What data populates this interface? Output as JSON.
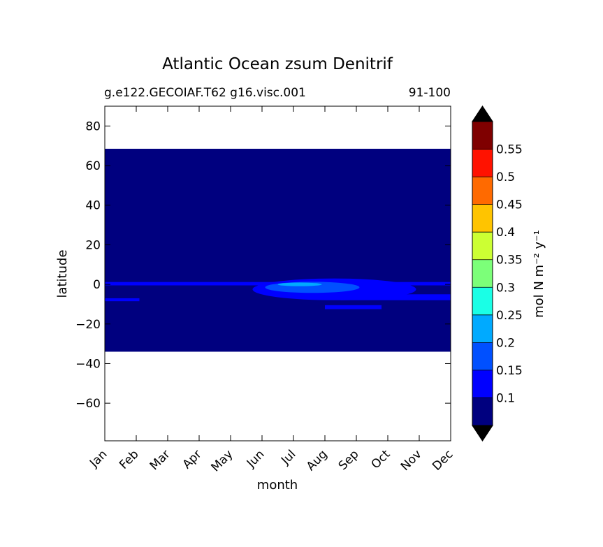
{
  "chart_data": {
    "type": "heatmap",
    "title": "Atlantic Ocean zsum Denitrif",
    "subtitle_left": "g.e122.GECOIAF.T62 g16.visc.001",
    "subtitle_right": "91-100",
    "xlabel": "month",
    "ylabel": "latitude",
    "x_categories": [
      "Jan",
      "Feb",
      "Mar",
      "Apr",
      "May",
      "Jun",
      "Jul",
      "Aug",
      "Sep",
      "Oct",
      "Nov",
      "Dec"
    ],
    "xlim": [
      0,
      11
    ],
    "ylim": [
      -79,
      90
    ],
    "y_ticks": [
      80,
      60,
      40,
      20,
      0,
      -20,
      -40,
      -60
    ],
    "y_tick_labels": [
      "80",
      "60",
      "40",
      "20",
      "0",
      "−20",
      "−40",
      "−60"
    ],
    "data_extent": {
      "lat_min": -34,
      "lat_max": 68.5
    },
    "background_value": 0.075,
    "features": [
      {
        "value": 0.125,
        "type": "band",
        "lat_min": -0.5,
        "lat_max": 1.2,
        "month_start": 0,
        "month_end": 11
      },
      {
        "value": 0.125,
        "type": "band",
        "lat_min": -8.5,
        "lat_max": -7,
        "month_start": 0,
        "month_end": 1.1
      },
      {
        "value": 0.125,
        "type": "blob",
        "month_center": 7.3,
        "lat_center": -2.5,
        "month_radius": 2.6,
        "lat_radius": 5.5
      },
      {
        "value": 0.125,
        "type": "band",
        "lat_min": -8,
        "lat_max": -5,
        "month_start": 7.5,
        "month_end": 11
      },
      {
        "value": 0.125,
        "type": "band",
        "lat_min": -12.5,
        "lat_max": -10.5,
        "month_start": 7,
        "month_end": 8.8
      },
      {
        "value": 0.175,
        "type": "blob",
        "month_center": 6.6,
        "lat_center": -1.5,
        "month_radius": 1.5,
        "lat_radius": 2.8
      },
      {
        "value": 0.225,
        "type": "blob",
        "month_center": 6.2,
        "lat_center": 0,
        "month_radius": 0.7,
        "lat_radius": 0.9
      }
    ],
    "colorbar": {
      "label": "mol N m⁻² y⁻¹",
      "levels": [
        0.05,
        0.1,
        0.15,
        0.2,
        0.25,
        0.3,
        0.35,
        0.4,
        0.45,
        0.5,
        0.55,
        0.6
      ],
      "colors": [
        "#00007f",
        "#0000ff",
        "#0050ff",
        "#00aaff",
        "#1affe6",
        "#7cff79",
        "#ccff33",
        "#ffc400",
        "#ff6a00",
        "#ff1200",
        "#7f0000"
      ],
      "extend_low_color": "#000000",
      "extend_high_color": "#000000",
      "tick_labels": [
        "0.1",
        "0.15",
        "0.2",
        "0.25",
        "0.3",
        "0.35",
        "0.4",
        "0.45",
        "0.5",
        "0.55"
      ]
    }
  }
}
